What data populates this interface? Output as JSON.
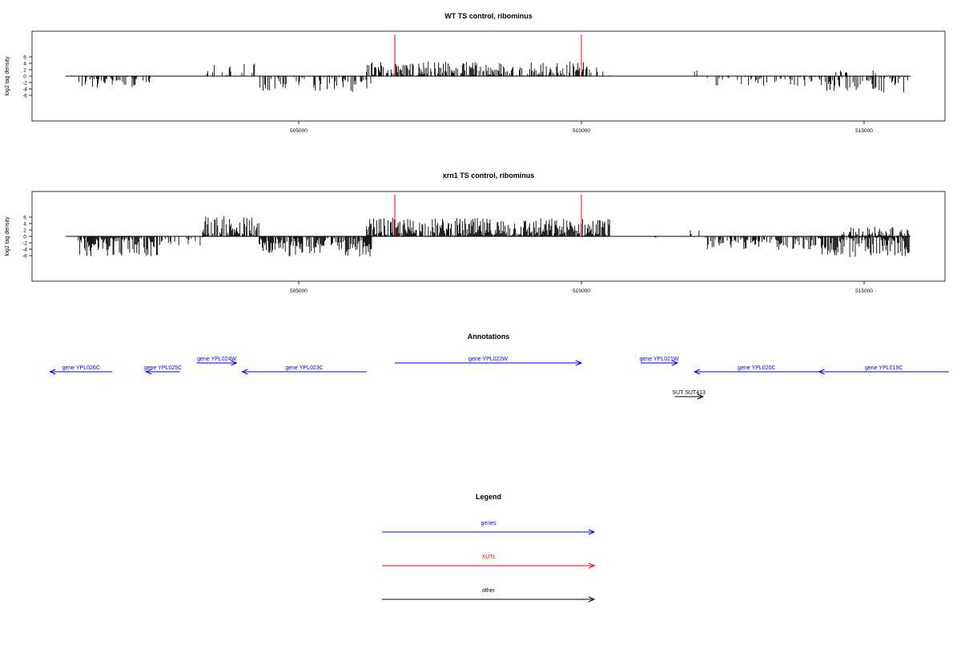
{
  "chart_data": [
    {
      "type": "bar",
      "title": "WT TS control, ribominus",
      "ylabel": "log2 tag density",
      "xlabel": "",
      "xlim": [
        500800,
        516500
      ],
      "ylim": [
        -7,
        7
      ],
      "y_ticks": [
        -6,
        -4,
        -2,
        0,
        2,
        4,
        6
      ],
      "y_tick_labels": [
        "-6",
        "-4",
        "-2",
        "0",
        "2",
        "4",
        "6"
      ],
      "x_ticks": [
        505000,
        510000,
        515000
      ],
      "x_tick_labels": [
        "505000",
        "510000",
        "515000"
      ],
      "markers": [
        {
          "x": 506700,
          "color": "#ff0000"
        },
        {
          "x": 510000,
          "color": "#ff0000"
        }
      ],
      "segments": [
        {
          "from": 501100,
          "to": 502400,
          "sign": -1,
          "max": 3.8,
          "density": 0.55
        },
        {
          "from": 503350,
          "to": 504300,
          "sign": 1,
          "max": 4.2,
          "density": 0.35
        },
        {
          "from": 504300,
          "to": 506300,
          "sign": -1,
          "max": 5.2,
          "density": 0.55
        },
        {
          "from": 506200,
          "to": 510100,
          "sign": 1,
          "max": 4.6,
          "density": 0.75
        },
        {
          "from": 510100,
          "to": 510500,
          "sign": 1,
          "max": 2.8,
          "density": 0.25
        },
        {
          "from": 512000,
          "to": 512050,
          "sign": 1,
          "max": 2.0,
          "density": 1.0
        },
        {
          "from": 512200,
          "to": 514300,
          "sign": -1,
          "max": 3.2,
          "density": 0.35
        },
        {
          "from": 514300,
          "to": 515800,
          "sign": -1,
          "max": 5.2,
          "density": 0.6
        },
        {
          "from": 514500,
          "to": 515200,
          "sign": 1,
          "max": 1.8,
          "density": 0.25
        }
      ]
    },
    {
      "type": "bar",
      "title": "xrn1 TS control, ribominus",
      "ylabel": "log2 tag density",
      "xlabel": "",
      "xlim": [
        500800,
        516500
      ],
      "ylim": [
        -7,
        7
      ],
      "y_ticks": [
        -6,
        -4,
        -2,
        0,
        2,
        4,
        6
      ],
      "y_tick_labels": [
        "-6",
        "-4",
        "-2",
        "0",
        "2",
        "4",
        "6"
      ],
      "x_ticks": [
        505000,
        510000,
        515000
      ],
      "x_tick_labels": [
        "505000",
        "510000",
        "515000"
      ],
      "markers": [
        {
          "x": 506700,
          "color": "#ff0000"
        },
        {
          "x": 510000,
          "color": "#ff0000"
        }
      ],
      "segments": [
        {
          "from": 501100,
          "to": 502500,
          "sign": -1,
          "max": 6.2,
          "density": 0.95
        },
        {
          "from": 502500,
          "to": 503300,
          "sign": -1,
          "max": 3.0,
          "density": 0.3
        },
        {
          "from": 503300,
          "to": 504300,
          "sign": 1,
          "max": 6.5,
          "density": 0.85
        },
        {
          "from": 504300,
          "to": 506300,
          "sign": -1,
          "max": 6.3,
          "density": 0.95
        },
        {
          "from": 506200,
          "to": 510500,
          "sign": 1,
          "max": 5.8,
          "density": 1.0
        },
        {
          "from": 511300,
          "to": 511320,
          "sign": -1,
          "max": 1.2,
          "density": 1.0
        },
        {
          "from": 511800,
          "to": 512100,
          "sign": 1,
          "max": 2.0,
          "density": 0.3
        },
        {
          "from": 512200,
          "to": 514200,
          "sign": -1,
          "max": 4.2,
          "density": 0.6
        },
        {
          "from": 514200,
          "to": 515800,
          "sign": -1,
          "max": 6.5,
          "density": 0.95
        },
        {
          "from": 514600,
          "to": 515800,
          "sign": 1,
          "max": 3.0,
          "density": 0.7
        }
      ]
    }
  ],
  "annotations": {
    "title": "Annotations",
    "features": [
      {
        "label": "gene YPL026C",
        "start": 501700,
        "end": 500600,
        "row": 0,
        "color": "#0000ff"
      },
      {
        "label": "gene YPL025C",
        "start": 502900,
        "end": 502300,
        "row": 0,
        "color": "#0000ff"
      },
      {
        "label": "gene YPL024W",
        "start": 503200,
        "end": 503900,
        "row": 1,
        "color": "#0000ff"
      },
      {
        "label": "gene YPL023C",
        "start": 506200,
        "end": 504000,
        "row": 0,
        "color": "#0000ff"
      },
      {
        "label": "gene YPL022W",
        "start": 506700,
        "end": 510000,
        "row": 1,
        "color": "#0000ff"
      },
      {
        "label": "gene YPL021W",
        "start": 511050,
        "end": 511700,
        "row": 1,
        "color": "#0000ff"
      },
      {
        "label": "gene YPL020C",
        "start": 514200,
        "end": 512000,
        "row": 0,
        "color": "#0000ff"
      },
      {
        "label": "gene YPL019C",
        "start": 516500,
        "end": 514200,
        "row": 0,
        "color": "#0000ff"
      },
      {
        "label": "SUT SUT413",
        "start": 511650,
        "end": 512150,
        "row": 2,
        "color": "#000000"
      }
    ]
  },
  "legend": {
    "title": "Legend",
    "items": [
      {
        "label": "genes",
        "color": "#0000ff"
      },
      {
        "label": "XUTs",
        "color": "#ff0000"
      },
      {
        "label": "other",
        "color": "#000000"
      }
    ]
  }
}
